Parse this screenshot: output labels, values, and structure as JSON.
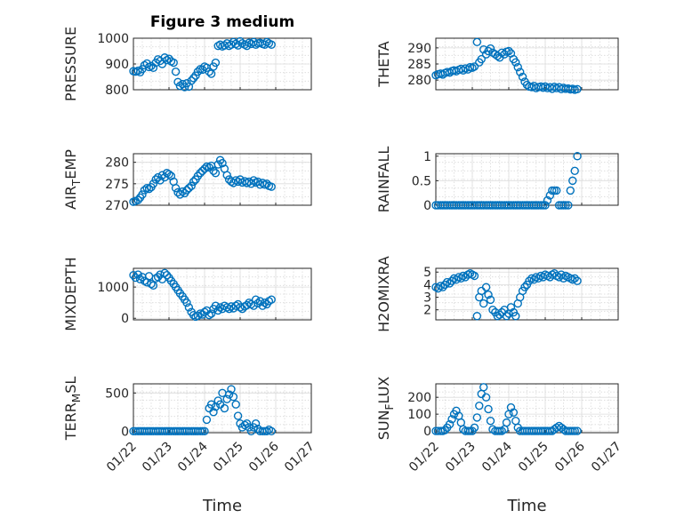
{
  "figure": {
    "title": "Figure 3 medium",
    "marker_color": "#0072BD"
  },
  "chart_data": [
    {
      "id": "pressure",
      "type": "scatter",
      "title": "Figure 3 medium",
      "ylabel": "PRESSURE",
      "ylabel_sub": "",
      "ylabel_after": "",
      "xlim": [
        0,
        5
      ],
      "ylim": [
        800,
        1000
      ],
      "yticks": [
        800,
        900,
        1000
      ],
      "xticks": [
        0,
        1,
        2,
        3,
        4,
        5
      ],
      "xticklabels": [
        "01/22",
        "01/23",
        "01/24",
        "01/25",
        "01/26",
        "01/27"
      ],
      "grid": true,
      "x": [
        0.0,
        0.06,
        0.13,
        0.19,
        0.25,
        0.31,
        0.38,
        0.44,
        0.5,
        0.56,
        0.63,
        0.69,
        0.75,
        0.81,
        0.88,
        0.94,
        1.0,
        1.06,
        1.13,
        1.19,
        1.25,
        1.31,
        1.38,
        1.44,
        1.5,
        1.56,
        1.63,
        1.69,
        1.75,
        1.81,
        1.88,
        1.94,
        2.0,
        2.06,
        2.13,
        2.19,
        2.25,
        2.31,
        2.38,
        2.44,
        2.5,
        2.56,
        2.63,
        2.69,
        2.75,
        2.81,
        2.88,
        2.94,
        3.0,
        3.06,
        3.13,
        3.19,
        3.25,
        3.31,
        3.38,
        3.44,
        3.5,
        3.56,
        3.63,
        3.69,
        3.75,
        3.81,
        3.88
      ],
      "y": [
        872,
        870,
        874,
        868,
        880,
        895,
        902,
        888,
        892,
        885,
        905,
        918,
        912,
        900,
        925,
        915,
        920,
        910,
        905,
        870,
        830,
        815,
        822,
        810,
        825,
        812,
        835,
        845,
        855,
        870,
        880,
        878,
        890,
        885,
        870,
        862,
        890,
        905,
        970,
        975,
        968,
        972,
        980,
        970,
        975,
        985,
        978,
        972,
        988,
        980,
        975,
        970,
        982,
        978,
        985,
        975,
        980,
        982,
        978,
        975,
        985,
        980,
        975
      ]
    },
    {
      "id": "theta",
      "type": "scatter",
      "title": "",
      "ylabel": "THETA",
      "ylabel_sub": "",
      "ylabel_after": "",
      "xlim": [
        0,
        5
      ],
      "ylim": [
        277,
        293
      ],
      "yticks": [
        280,
        285,
        290
      ],
      "xticks": [
        0,
        1,
        2,
        3,
        4,
        5
      ],
      "xticklabels": [
        "01/22",
        "01/23",
        "01/24",
        "01/25",
        "01/26",
        "01/27"
      ],
      "grid": true,
      "x": [
        0.0,
        0.06,
        0.13,
        0.19,
        0.25,
        0.31,
        0.38,
        0.44,
        0.5,
        0.56,
        0.63,
        0.69,
        0.75,
        0.81,
        0.88,
        0.94,
        1.0,
        1.06,
        1.13,
        1.19,
        1.25,
        1.31,
        1.38,
        1.44,
        1.5,
        1.56,
        1.63,
        1.69,
        1.75,
        1.81,
        1.88,
        1.94,
        2.0,
        2.06,
        2.13,
        2.19,
        2.25,
        2.31,
        2.38,
        2.44,
        2.5,
        2.56,
        2.63,
        2.69,
        2.75,
        2.81,
        2.88,
        2.94,
        3.0,
        3.06,
        3.13,
        3.19,
        3.25,
        3.31,
        3.38,
        3.44,
        3.5,
        3.56,
        3.63,
        3.69,
        3.75,
        3.81,
        3.88
      ],
      "y": [
        281.5,
        281.8,
        282.0,
        281.7,
        282.2,
        282.5,
        282.3,
        282.8,
        283.0,
        282.7,
        283.2,
        283.5,
        283.0,
        283.6,
        283.3,
        284.0,
        283.8,
        284.2,
        291.8,
        285.5,
        286.5,
        289.5,
        288.0,
        289.0,
        289.8,
        288.5,
        288.0,
        287.5,
        287.0,
        288.5,
        288.0,
        288.8,
        289.0,
        288.3,
        286.5,
        285.5,
        284.0,
        282.5,
        281.0,
        279.5,
        278.5,
        278.0,
        277.8,
        278.2,
        277.5,
        277.8,
        278.0,
        277.6,
        278.0,
        277.5,
        277.8,
        277.3,
        277.9,
        277.5,
        277.8,
        277.2,
        277.6,
        277.3,
        277.4,
        277.1,
        277.3,
        277.0,
        277.2
      ]
    },
    {
      "id": "air_temp",
      "type": "scatter",
      "title": "",
      "ylabel": "AIR",
      "ylabel_sub": "T",
      "ylabel_after": "EMP",
      "xlim": [
        0,
        5
      ],
      "ylim": [
        270,
        282
      ],
      "yticks": [
        270,
        275,
        280
      ],
      "xticks": [
        0,
        1,
        2,
        3,
        4,
        5
      ],
      "xticklabels": [
        "01/22",
        "01/23",
        "01/24",
        "01/25",
        "01/26",
        "01/27"
      ],
      "grid": true,
      "x": [
        0.0,
        0.06,
        0.13,
        0.19,
        0.25,
        0.31,
        0.38,
        0.44,
        0.5,
        0.56,
        0.63,
        0.69,
        0.75,
        0.81,
        0.88,
        0.94,
        1.0,
        1.06,
        1.13,
        1.19,
        1.25,
        1.31,
        1.38,
        1.44,
        1.5,
        1.56,
        1.63,
        1.69,
        1.75,
        1.81,
        1.88,
        1.94,
        2.0,
        2.06,
        2.13,
        2.19,
        2.25,
        2.31,
        2.38,
        2.44,
        2.5,
        2.56,
        2.63,
        2.69,
        2.75,
        2.81,
        2.88,
        2.94,
        3.0,
        3.06,
        3.13,
        3.19,
        3.25,
        3.31,
        3.38,
        3.44,
        3.5,
        3.56,
        3.63,
        3.69,
        3.75,
        3.81,
        3.88
      ],
      "y": [
        270.8,
        271.0,
        271.2,
        271.8,
        272.5,
        273.5,
        274.0,
        273.8,
        274.2,
        275.0,
        276.0,
        276.5,
        275.8,
        277.0,
        276.5,
        277.5,
        277.2,
        276.8,
        275.5,
        274.0,
        273.0,
        272.5,
        273.2,
        272.8,
        273.5,
        274.0,
        274.5,
        275.5,
        276.0,
        276.8,
        277.5,
        278.0,
        278.5,
        279.0,
        278.8,
        279.2,
        278.0,
        277.5,
        279.5,
        280.5,
        279.8,
        278.5,
        277.0,
        276.0,
        275.5,
        275.2,
        275.8,
        275.5,
        276.0,
        275.3,
        275.6,
        275.2,
        275.5,
        275.0,
        275.8,
        275.3,
        275.5,
        274.8,
        275.2,
        274.8,
        275.0,
        274.5,
        274.3
      ]
    },
    {
      "id": "rainfall",
      "type": "scatter",
      "title": "",
      "ylabel": "RAINFALL",
      "ylabel_sub": "",
      "ylabel_after": "",
      "xlim": [
        0,
        5
      ],
      "ylim": [
        0,
        1.05
      ],
      "yticks": [
        0,
        0.5,
        1
      ],
      "xticks": [
        0,
        1,
        2,
        3,
        4,
        5
      ],
      "xticklabels": [
        "01/22",
        "01/23",
        "01/24",
        "01/25",
        "01/26",
        "01/27"
      ],
      "grid": true,
      "x": [
        0.0,
        0.06,
        0.13,
        0.19,
        0.25,
        0.31,
        0.38,
        0.44,
        0.5,
        0.56,
        0.63,
        0.69,
        0.75,
        0.81,
        0.88,
        0.94,
        1.0,
        1.06,
        1.13,
        1.19,
        1.25,
        1.31,
        1.38,
        1.44,
        1.5,
        1.56,
        1.63,
        1.69,
        1.75,
        1.81,
        1.88,
        1.94,
        2.0,
        2.06,
        2.13,
        2.19,
        2.25,
        2.31,
        2.38,
        2.44,
        2.5,
        2.56,
        2.63,
        2.69,
        2.75,
        2.81,
        2.88,
        2.94,
        3.0,
        3.06,
        3.13,
        3.19,
        3.25,
        3.31,
        3.38,
        3.44,
        3.5,
        3.56,
        3.63,
        3.69,
        3.75,
        3.81,
        3.88
      ],
      "y": [
        0,
        0,
        0,
        0,
        0,
        0,
        0,
        0,
        0,
        0,
        0,
        0,
        0,
        0,
        0,
        0,
        0,
        0,
        0,
        0,
        0,
        0,
        0,
        0,
        0,
        0,
        0,
        0,
        0,
        0,
        0,
        0,
        0,
        0,
        0,
        0,
        0,
        0,
        0,
        0,
        0,
        0,
        0,
        0,
        0,
        0,
        0,
        0,
        0,
        0.1,
        0.2,
        0.3,
        0.3,
        0.3,
        0,
        0,
        0,
        0,
        0,
        0.3,
        0.5,
        0.7,
        1.0
      ]
    },
    {
      "id": "mixdepth",
      "type": "scatter",
      "title": "",
      "ylabel": "MIXDEPTH",
      "ylabel_sub": "",
      "ylabel_after": "",
      "xlim": [
        0,
        5
      ],
      "ylim": [
        -50,
        1600
      ],
      "yticks": [
        0,
        1000
      ],
      "xticks": [
        0,
        1,
        2,
        3,
        4,
        5
      ],
      "xticklabels": [
        "01/22",
        "01/23",
        "01/24",
        "01/25",
        "01/26",
        "01/27"
      ],
      "grid": true,
      "x": [
        0.0,
        0.06,
        0.13,
        0.19,
        0.25,
        0.31,
        0.38,
        0.44,
        0.5,
        0.56,
        0.63,
        0.69,
        0.75,
        0.81,
        0.88,
        0.94,
        1.0,
        1.06,
        1.13,
        1.19,
        1.25,
        1.31,
        1.38,
        1.44,
        1.5,
        1.56,
        1.63,
        1.69,
        1.75,
        1.81,
        1.88,
        1.94,
        2.0,
        2.06,
        2.13,
        2.19,
        2.25,
        2.31,
        2.38,
        2.44,
        2.5,
        2.56,
        2.63,
        2.69,
        2.75,
        2.81,
        2.88,
        2.94,
        3.0,
        3.06,
        3.13,
        3.19,
        3.25,
        3.31,
        3.38,
        3.44,
        3.5,
        3.56,
        3.63,
        3.69,
        3.75,
        3.81,
        3.88
      ],
      "y": [
        1380,
        1300,
        1400,
        1250,
        1320,
        1200,
        1150,
        1350,
        1100,
        1050,
        1280,
        1320,
        1400,
        1250,
        1450,
        1380,
        1300,
        1200,
        1100,
        1000,
        900,
        800,
        700,
        600,
        500,
        350,
        200,
        100,
        50,
        80,
        150,
        120,
        200,
        250,
        100,
        150,
        300,
        400,
        250,
        350,
        300,
        400,
        350,
        300,
        380,
        320,
        400,
        450,
        350,
        300,
        380,
        420,
        500,
        450,
        400,
        600,
        480,
        550,
        400,
        500,
        450,
        550,
        600
      ]
    },
    {
      "id": "h2omixra",
      "type": "scatter",
      "title": "",
      "ylabel": "H2OMIXRA",
      "ylabel_sub": "",
      "ylabel_after": "",
      "xlim": [
        0,
        5
      ],
      "ylim": [
        1.2,
        5.3
      ],
      "yticks": [
        2,
        3,
        4,
        5
      ],
      "xticks": [
        0,
        1,
        2,
        3,
        4,
        5
      ],
      "xticklabels": [
        "01/22",
        "01/23",
        "01/24",
        "01/25",
        "01/26",
        "01/27"
      ],
      "grid": true,
      "x": [
        0.0,
        0.06,
        0.13,
        0.19,
        0.25,
        0.31,
        0.38,
        0.44,
        0.5,
        0.56,
        0.63,
        0.69,
        0.75,
        0.81,
        0.88,
        0.94,
        1.0,
        1.06,
        1.13,
        1.19,
        1.25,
        1.31,
        1.38,
        1.44,
        1.5,
        1.56,
        1.63,
        1.69,
        1.75,
        1.81,
        1.88,
        1.94,
        2.0,
        2.06,
        2.13,
        2.19,
        2.25,
        2.31,
        2.38,
        2.44,
        2.5,
        2.56,
        2.63,
        2.69,
        2.75,
        2.81,
        2.88,
        2.94,
        3.0,
        3.06,
        3.13,
        3.19,
        3.25,
        3.31,
        3.38,
        3.44,
        3.5,
        3.56,
        3.63,
        3.69,
        3.75,
        3.81,
        3.88
      ],
      "y": [
        3.8,
        3.7,
        3.9,
        3.8,
        4.0,
        4.2,
        4.1,
        4.3,
        4.5,
        4.4,
        4.6,
        4.5,
        4.7,
        4.6,
        4.8,
        4.9,
        4.8,
        4.7,
        1.5,
        3.0,
        3.5,
        2.5,
        3.8,
        3.2,
        2.8,
        2.0,
        1.8,
        1.5,
        1.6,
        1.8,
        2.0,
        1.5,
        1.7,
        2.2,
        1.8,
        1.5,
        2.5,
        3.0,
        3.5,
        3.8,
        4.0,
        4.3,
        4.5,
        4.4,
        4.6,
        4.5,
        4.7,
        4.6,
        4.8,
        4.7,
        4.6,
        4.8,
        4.9,
        4.7,
        4.6,
        4.8,
        4.5,
        4.7,
        4.6,
        4.5,
        4.4,
        4.5,
        4.3
      ]
    },
    {
      "id": "terr_msl",
      "type": "scatter",
      "title": "",
      "ylabel": "TERR",
      "ylabel_sub": "M",
      "ylabel_after": "SL",
      "xlim": [
        0,
        5
      ],
      "ylim": [
        -20,
        620
      ],
      "yticks": [
        0,
        500
      ],
      "xticks": [
        0,
        1,
        2,
        3,
        4,
        5
      ],
      "xticklabels": [
        "01/22",
        "01/23",
        "01/24",
        "01/25",
        "01/26",
        "01/27"
      ],
      "grid": true,
      "x": [
        0.0,
        0.06,
        0.13,
        0.19,
        0.25,
        0.31,
        0.38,
        0.44,
        0.5,
        0.56,
        0.63,
        0.69,
        0.75,
        0.81,
        0.88,
        0.94,
        1.0,
        1.06,
        1.13,
        1.19,
        1.25,
        1.31,
        1.38,
        1.44,
        1.5,
        1.56,
        1.63,
        1.69,
        1.75,
        1.81,
        1.88,
        1.94,
        2.0,
        2.06,
        2.13,
        2.19,
        2.25,
        2.31,
        2.38,
        2.44,
        2.5,
        2.56,
        2.63,
        2.69,
        2.75,
        2.81,
        2.88,
        2.94,
        3.0,
        3.06,
        3.13,
        3.19,
        3.25,
        3.31,
        3.38,
        3.44,
        3.5,
        3.56,
        3.63,
        3.69,
        3.75,
        3.81,
        3.88
      ],
      "y": [
        0,
        0,
        0,
        0,
        0,
        0,
        0,
        0,
        0,
        0,
        0,
        0,
        0,
        0,
        0,
        0,
        0,
        0,
        0,
        0,
        0,
        0,
        0,
        0,
        0,
        0,
        0,
        0,
        0,
        0,
        0,
        0,
        0,
        150,
        300,
        350,
        250,
        320,
        400,
        350,
        500,
        300,
        420,
        480,
        550,
        450,
        350,
        200,
        100,
        50,
        80,
        100,
        50,
        0,
        50,
        100,
        30,
        0,
        0,
        0,
        0,
        20,
        0
      ]
    },
    {
      "id": "sun_flux",
      "type": "scatter",
      "title": "",
      "ylabel": "SUN",
      "ylabel_sub": "F",
      "ylabel_after": "LUX",
      "xlim": [
        0,
        5
      ],
      "ylim": [
        -10,
        280
      ],
      "yticks": [
        0,
        100,
        200
      ],
      "xticks": [
        0,
        1,
        2,
        3,
        4,
        5
      ],
      "xticklabels": [
        "01/22",
        "01/23",
        "01/24",
        "01/25",
        "01/26",
        "01/27"
      ],
      "grid": true,
      "x": [
        0.0,
        0.06,
        0.13,
        0.19,
        0.25,
        0.31,
        0.38,
        0.44,
        0.5,
        0.56,
        0.63,
        0.69,
        0.75,
        0.81,
        0.88,
        0.94,
        1.0,
        1.06,
        1.13,
        1.19,
        1.25,
        1.31,
        1.38,
        1.44,
        1.5,
        1.56,
        1.63,
        1.69,
        1.75,
        1.81,
        1.88,
        1.94,
        2.0,
        2.06,
        2.13,
        2.19,
        2.25,
        2.31,
        2.38,
        2.44,
        2.5,
        2.56,
        2.63,
        2.69,
        2.75,
        2.81,
        2.88,
        2.94,
        3.0,
        3.06,
        3.13,
        3.19,
        3.25,
        3.31,
        3.38,
        3.44,
        3.5,
        3.56,
        3.63,
        3.69,
        3.75,
        3.81,
        3.88
      ],
      "y": [
        0,
        0,
        0,
        0,
        5,
        20,
        40,
        70,
        100,
        120,
        90,
        50,
        10,
        0,
        0,
        0,
        0,
        20,
        80,
        150,
        220,
        260,
        200,
        130,
        60,
        10,
        0,
        0,
        0,
        0,
        10,
        50,
        100,
        140,
        110,
        60,
        20,
        0,
        0,
        0,
        0,
        0,
        0,
        0,
        0,
        0,
        0,
        0,
        0,
        0,
        0,
        0,
        10,
        20,
        30,
        20,
        10,
        0,
        0,
        0,
        0,
        0,
        0
      ]
    }
  ]
}
